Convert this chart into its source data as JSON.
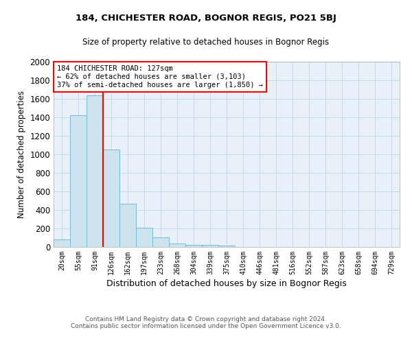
{
  "title": "184, CHICHESTER ROAD, BOGNOR REGIS, PO21 5BJ",
  "subtitle": "Size of property relative to detached houses in Bognor Regis",
  "xlabel": "Distribution of detached houses by size in Bognor Regis",
  "ylabel": "Number of detached properties",
  "footer_line1": "Contains HM Land Registry data © Crown copyright and database right 2024.",
  "footer_line2": "Contains public sector information licensed under the Open Government Licence v3.0.",
  "categories": [
    "20sqm",
    "55sqm",
    "91sqm",
    "126sqm",
    "162sqm",
    "197sqm",
    "233sqm",
    "268sqm",
    "304sqm",
    "339sqm",
    "375sqm",
    "410sqm",
    "446sqm",
    "481sqm",
    "516sqm",
    "552sqm",
    "587sqm",
    "623sqm",
    "658sqm",
    "694sqm",
    "729sqm"
  ],
  "values": [
    85,
    1420,
    1640,
    1050,
    470,
    205,
    105,
    40,
    25,
    20,
    15,
    0,
    0,
    0,
    0,
    0,
    0,
    0,
    0,
    0,
    0
  ],
  "bar_color": "#cde4f0",
  "bar_edge_color": "#7ab8d4",
  "property_line_idx": 3,
  "property_line_color": "red",
  "annotation_text": "184 CHICHESTER ROAD: 127sqm\n← 62% of detached houses are smaller (3,103)\n37% of semi-detached houses are larger (1,850) →",
  "annotation_box_color": "white",
  "annotation_box_edge_color": "red",
  "ylim": [
    0,
    2000
  ],
  "yticks": [
    0,
    200,
    400,
    600,
    800,
    1000,
    1200,
    1400,
    1600,
    1800,
    2000
  ],
  "grid_color": "#c8d8e8",
  "bg_color": "#e8f0f8"
}
